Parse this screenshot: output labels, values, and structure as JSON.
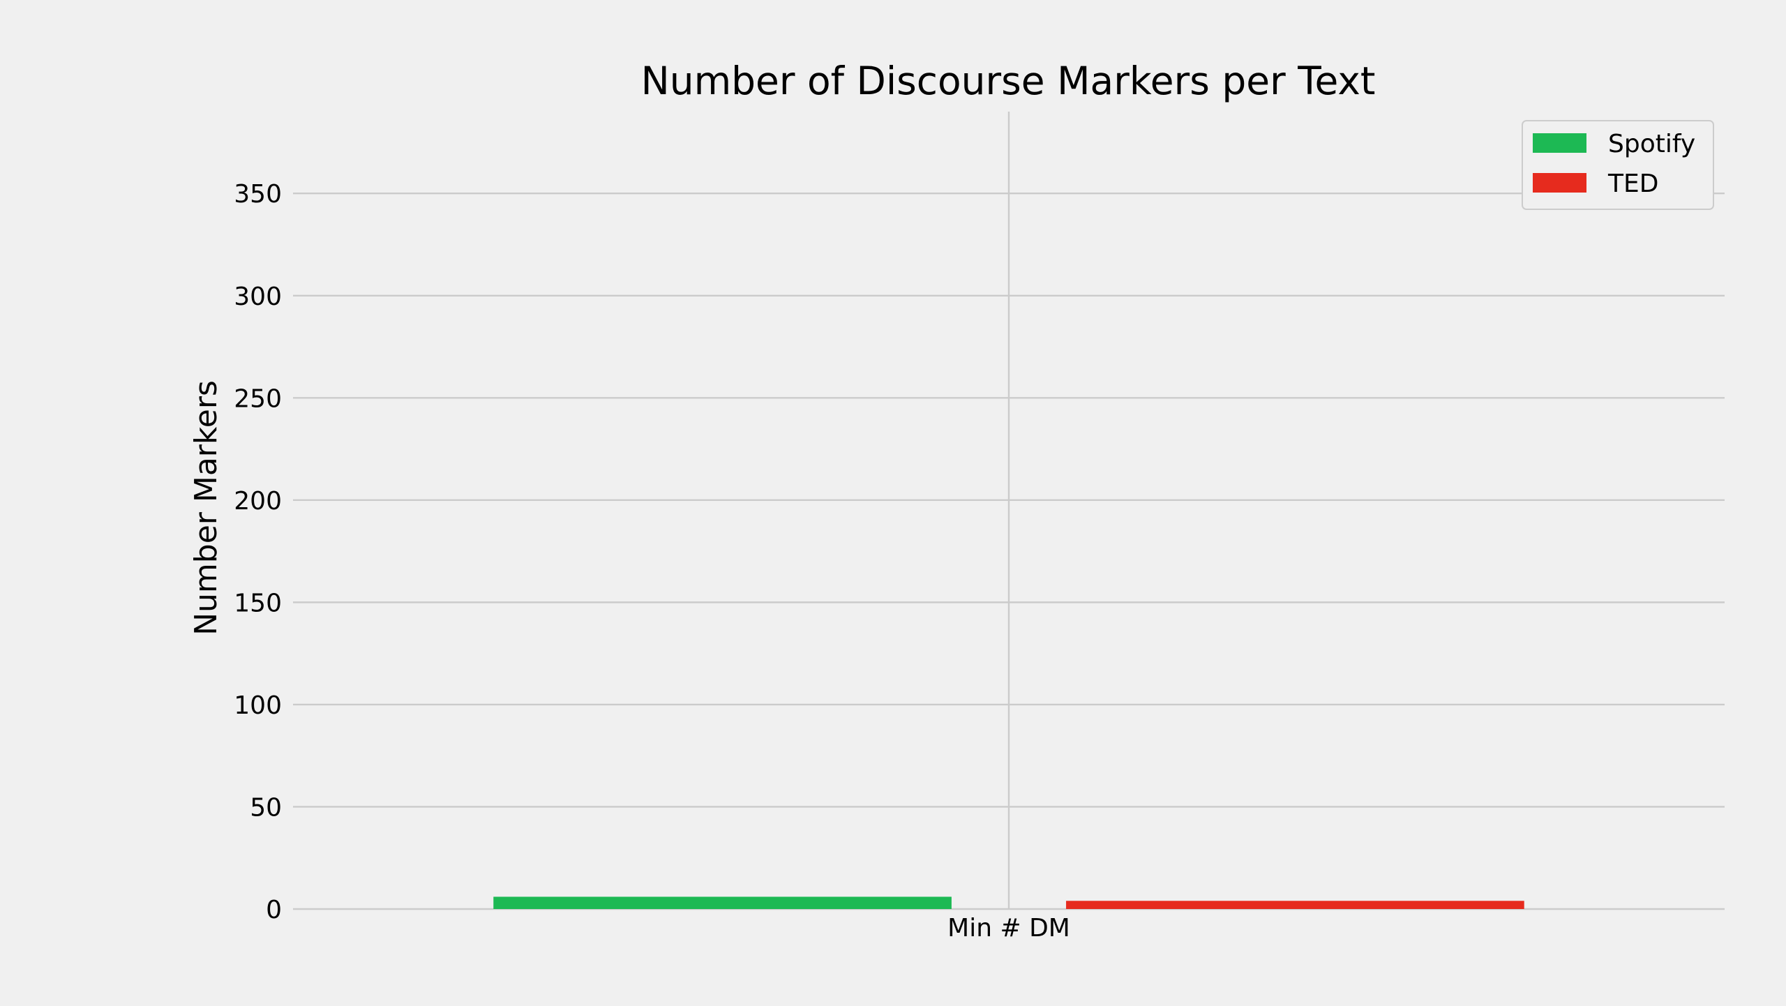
{
  "chart_data": {
    "type": "bar",
    "title": "Number of Discourse Markers per Text",
    "xlabel": "",
    "ylabel": "Number Markers",
    "categories": [
      "Min # DM"
    ],
    "series": [
      {
        "name": "Spotify",
        "color": "#1db954",
        "values": [
          6
        ]
      },
      {
        "name": "TED",
        "color": "#e62b1e",
        "values": [
          4
        ]
      }
    ],
    "ylim": [
      0,
      390
    ],
    "yticks": [
      0,
      50,
      100,
      150,
      200,
      250,
      300,
      350
    ],
    "grid": true,
    "legend": "top-right",
    "background": "#f0f0f0",
    "grid_color": "#cbcbcb"
  }
}
